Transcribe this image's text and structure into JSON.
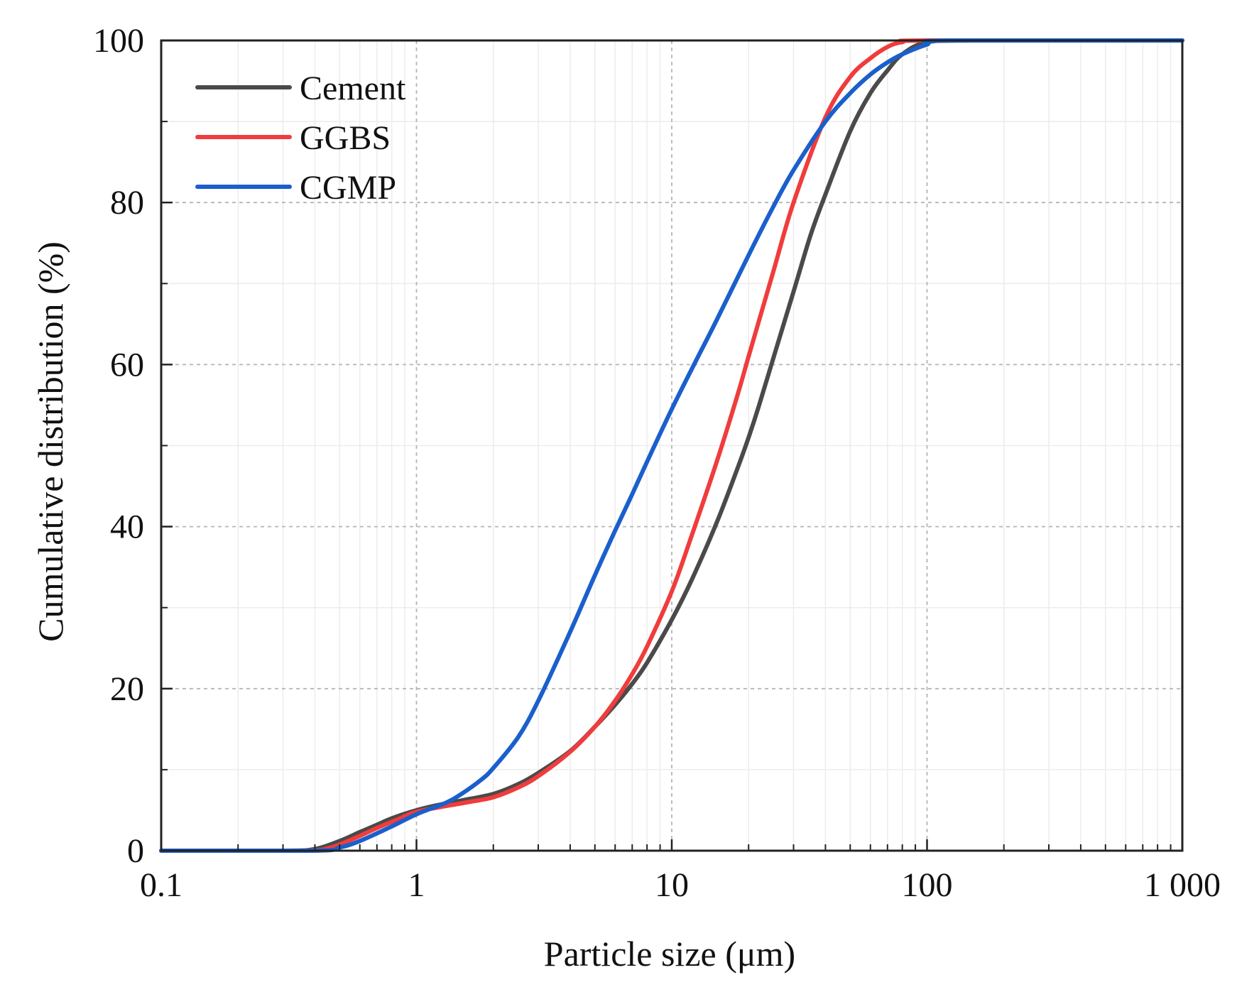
{
  "chart_data": {
    "type": "line",
    "title": "",
    "xlabel": "Particle size (μm)",
    "ylabel": "Cumulative distribution (%)",
    "x_scale": "log",
    "xlim": [
      0.1,
      1000
    ],
    "ylim": [
      0,
      100
    ],
    "x_ticks": [
      0.1,
      1,
      10,
      100,
      1000
    ],
    "x_tick_labels": [
      "0.1",
      "1",
      "10",
      "100",
      "1 000"
    ],
    "y_ticks": [
      0,
      20,
      40,
      60,
      80,
      100
    ],
    "y_tick_labels": [
      "0",
      "20",
      "40",
      "60",
      "80",
      "100"
    ],
    "grid": true,
    "legend_position": "top-left",
    "series": [
      {
        "name": "Cement",
        "color": "#4a4a4a",
        "points": [
          [
            0.1,
            0
          ],
          [
            0.3,
            0
          ],
          [
            0.4,
            0.2
          ],
          [
            0.5,
            1.2
          ],
          [
            0.6,
            2.3
          ],
          [
            0.7,
            3.2
          ],
          [
            0.8,
            4.0
          ],
          [
            1,
            5.0
          ],
          [
            1.2,
            5.6
          ],
          [
            1.5,
            6.2
          ],
          [
            2,
            7.0
          ],
          [
            2.5,
            8.2
          ],
          [
            3,
            9.6
          ],
          [
            4,
            12.3
          ],
          [
            5,
            15.3
          ],
          [
            6,
            18.0
          ],
          [
            7,
            20.6
          ],
          [
            8,
            23.2
          ],
          [
            10,
            28.5
          ],
          [
            12,
            33.5
          ],
          [
            15,
            40.5
          ],
          [
            18,
            47.0
          ],
          [
            20,
            51.0
          ],
          [
            22,
            55.0
          ],
          [
            25,
            60.8
          ],
          [
            30,
            69.0
          ],
          [
            35,
            76.0
          ],
          [
            40,
            81.0
          ],
          [
            50,
            88.8
          ],
          [
            60,
            93.5
          ],
          [
            70,
            96.3
          ],
          [
            80,
            98.3
          ],
          [
            100,
            99.8
          ],
          [
            150,
            100
          ],
          [
            1000,
            100
          ]
        ]
      },
      {
        "name": "GGBS",
        "color": "#f03c3c",
        "points": [
          [
            0.1,
            0
          ],
          [
            0.35,
            0
          ],
          [
            0.45,
            0.3
          ],
          [
            0.55,
            1.3
          ],
          [
            0.7,
            2.8
          ],
          [
            0.85,
            3.9
          ],
          [
            1,
            4.8
          ],
          [
            1.3,
            5.5
          ],
          [
            1.6,
            6.0
          ],
          [
            2,
            6.6
          ],
          [
            2.5,
            7.8
          ],
          [
            3,
            9.2
          ],
          [
            4,
            12.2
          ],
          [
            5,
            15.3
          ],
          [
            6,
            18.5
          ],
          [
            7,
            21.8
          ],
          [
            8,
            25.2
          ],
          [
            10,
            32.0
          ],
          [
            12,
            39.0
          ],
          [
            15,
            48.0
          ],
          [
            18,
            56.0
          ],
          [
            20,
            61.0
          ],
          [
            25,
            71.5
          ],
          [
            30,
            80.0
          ],
          [
            40,
            90.5
          ],
          [
            50,
            95.5
          ],
          [
            60,
            97.8
          ],
          [
            70,
            99.2
          ],
          [
            80,
            99.8
          ],
          [
            100,
            100
          ],
          [
            1000,
            100
          ]
        ]
      },
      {
        "name": "CGMP",
        "color": "#1a5fcc",
        "points": [
          [
            0.1,
            0
          ],
          [
            0.4,
            0
          ],
          [
            0.5,
            0.4
          ],
          [
            0.6,
            1.2
          ],
          [
            0.8,
            3.0
          ],
          [
            1,
            4.5
          ],
          [
            1.3,
            5.9
          ],
          [
            1.5,
            7.0
          ],
          [
            1.8,
            8.8
          ],
          [
            2,
            10.2
          ],
          [
            2.5,
            14.0
          ],
          [
            3,
            18.5
          ],
          [
            4,
            27.0
          ],
          [
            5,
            34.0
          ],
          [
            6,
            39.5
          ],
          [
            7,
            44.0
          ],
          [
            8,
            48.0
          ],
          [
            10,
            54.5
          ],
          [
            12,
            59.5
          ],
          [
            15,
            65.5
          ],
          [
            20,
            73.5
          ],
          [
            25,
            79.5
          ],
          [
            30,
            84.0
          ],
          [
            40,
            90.0
          ],
          [
            50,
            93.5
          ],
          [
            60,
            95.8
          ],
          [
            70,
            97.3
          ],
          [
            80,
            98.3
          ],
          [
            100,
            99.5
          ],
          [
            120,
            100
          ],
          [
            1000,
            100
          ]
        ]
      }
    ]
  }
}
